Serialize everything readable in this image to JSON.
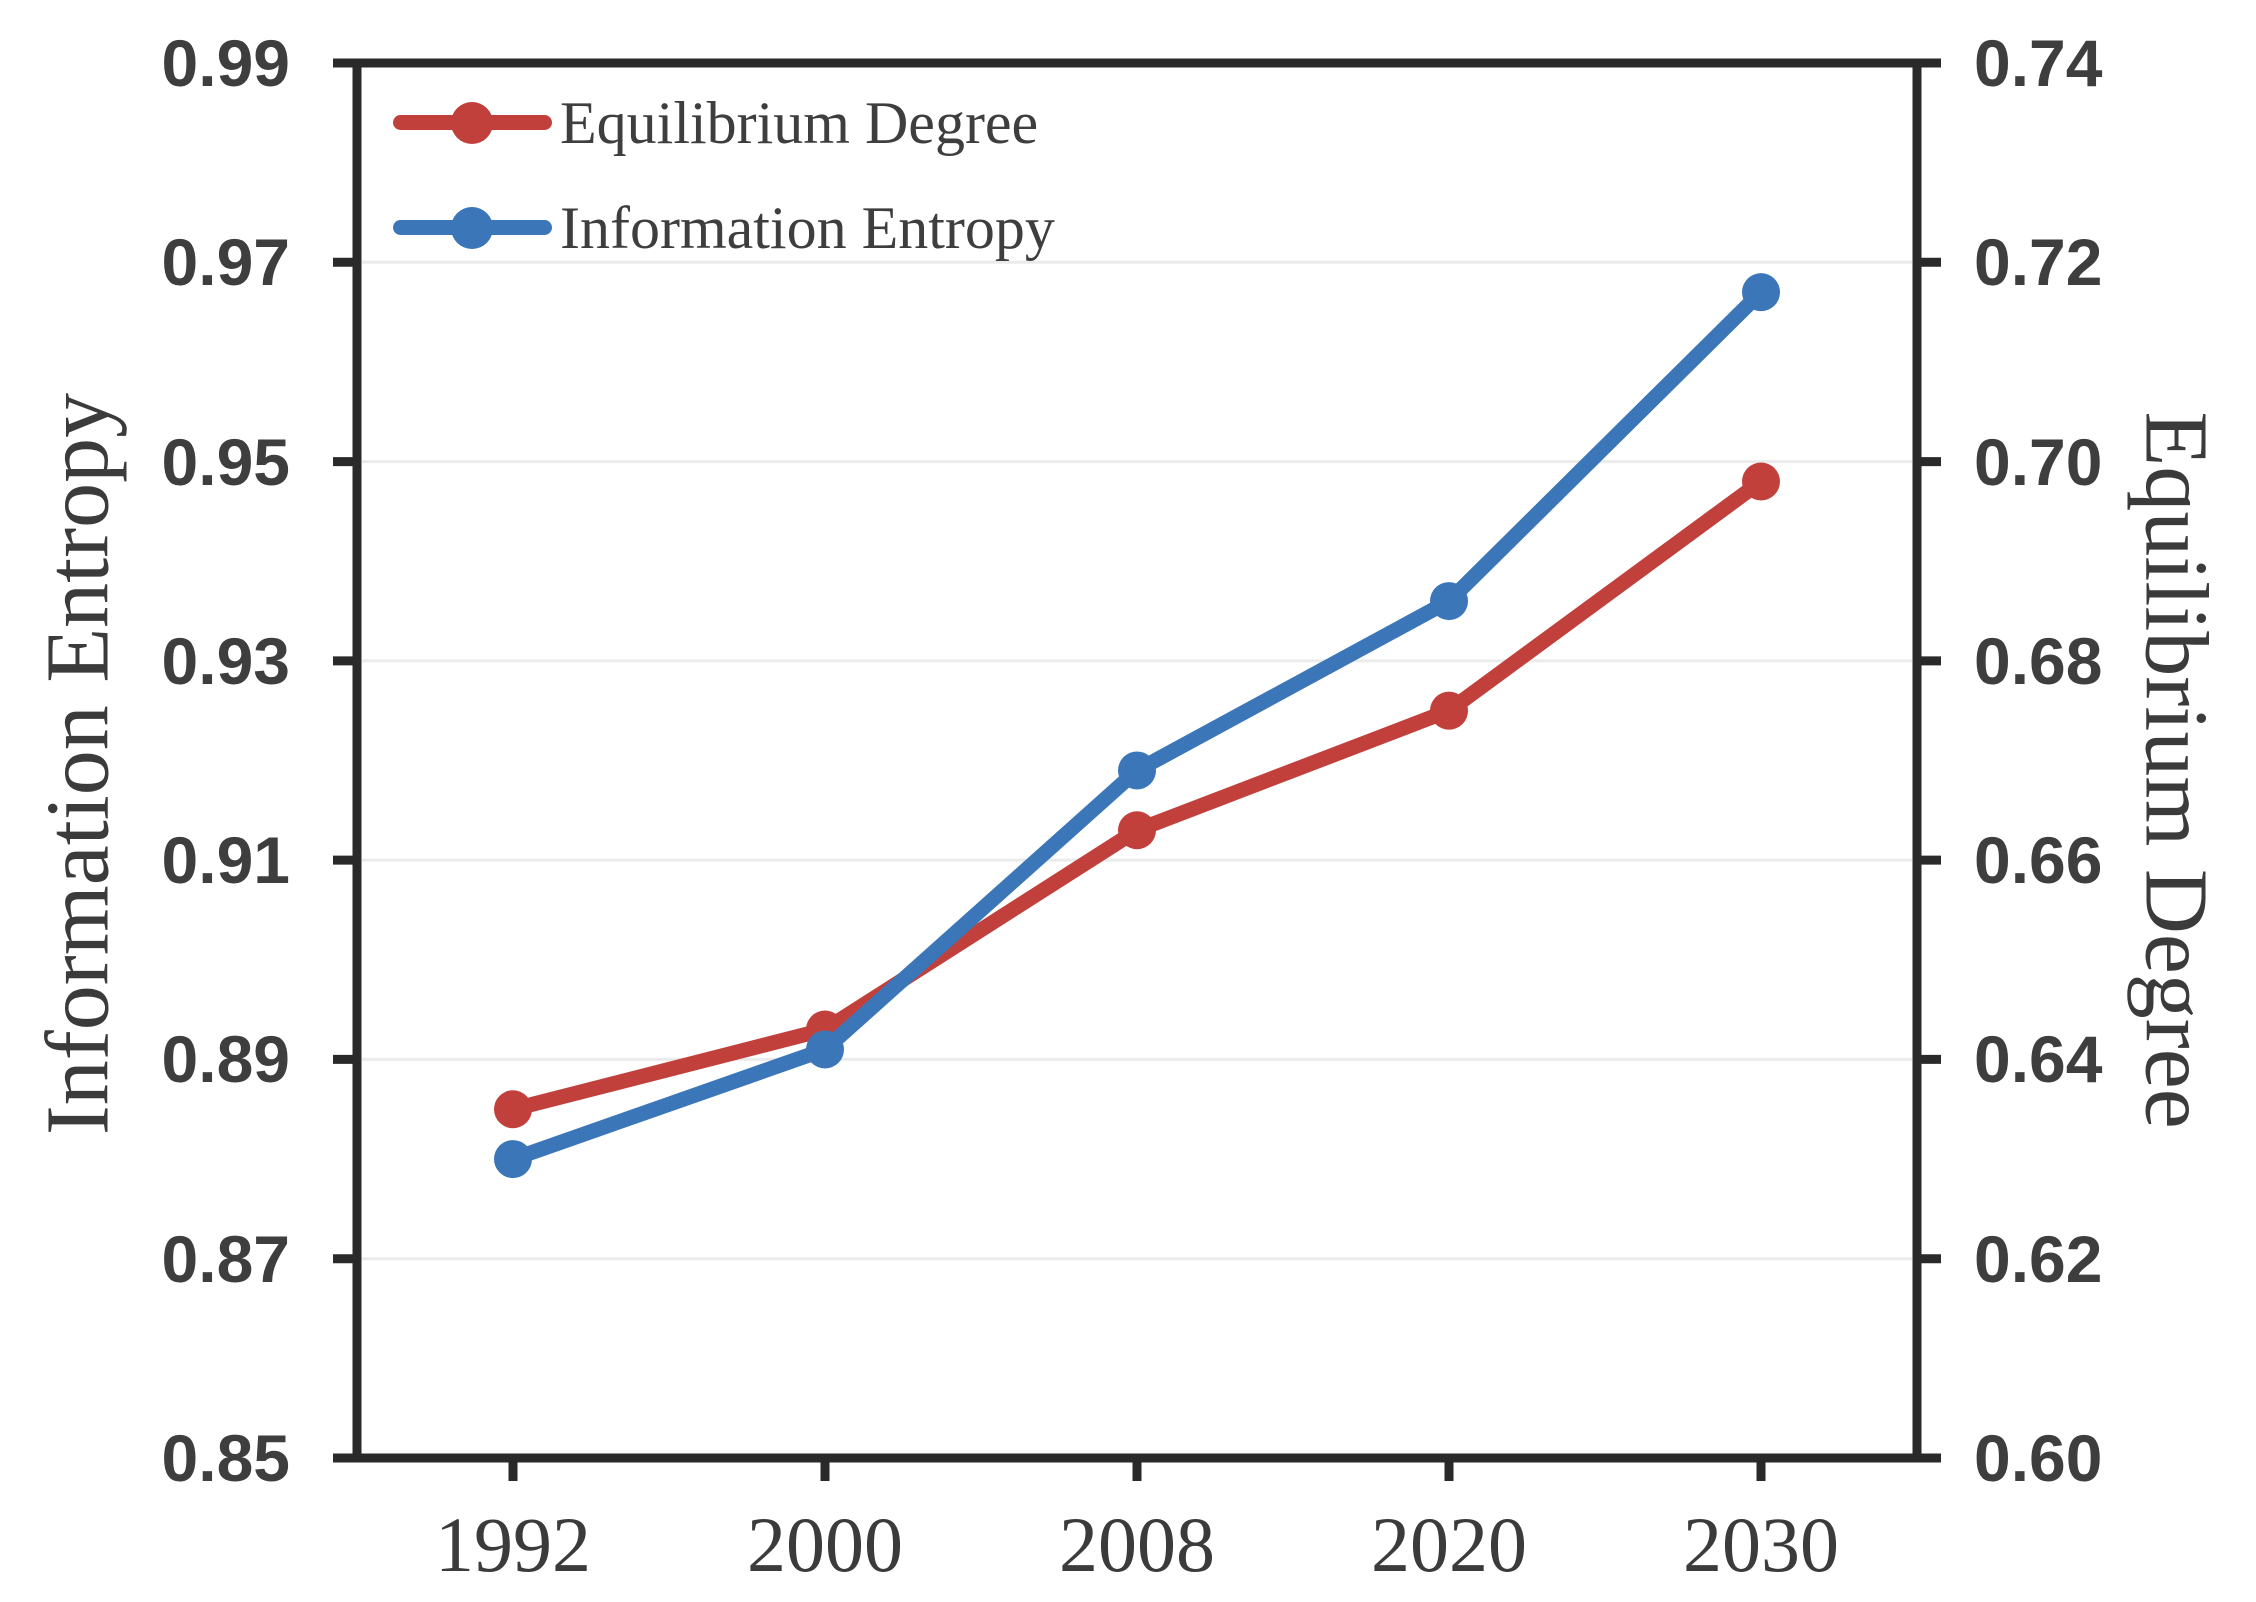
{
  "chart_data": {
    "type": "line",
    "title": "",
    "categories": [
      "1992",
      "2000",
      "2008",
      "2020",
      "2030"
    ],
    "series": [
      {
        "name": "Equilibrium Degree",
        "axis": "right",
        "color": "#c2403c",
        "marker": "circle",
        "values": [
          0.635,
          0.643,
          0.663,
          0.675,
          0.698
        ]
      },
      {
        "name": "Information Entropy",
        "axis": "left",
        "color": "#3b76b8",
        "marker": "circle",
        "values": [
          0.88,
          0.891,
          0.919,
          0.936,
          0.967
        ]
      }
    ],
    "axes": {
      "left": {
        "title": "Information Entropy",
        "min": 0.85,
        "max": 0.99,
        "tick_step": 0.02,
        "tick_labels": [
          "0.99",
          "0.97",
          "0.95",
          "0.93",
          "0.91",
          "0.89",
          "0.87",
          "0.85"
        ]
      },
      "right": {
        "title": "Equilibrium Degree",
        "min": 0.6,
        "max": 0.74,
        "tick_step": 0.02,
        "tick_labels": [
          "0.74",
          "0.72",
          "0.70",
          "0.68",
          "0.66",
          "0.64",
          "0.62",
          "0.60"
        ]
      },
      "x": {
        "tick_labels": [
          "1992",
          "2000",
          "2008",
          "2020",
          "2030"
        ]
      }
    },
    "legend": {
      "position": "top-left-inside",
      "items": [
        {
          "label": "Equilibrium Degree",
          "color": "#c2403c"
        },
        {
          "label": "Information Entropy",
          "color": "#3b76b8"
        }
      ]
    },
    "grid": {
      "horizontal": true,
      "color": "#ebebeb"
    }
  },
  "colors": {
    "background": "#ffffff",
    "frame": "#2a2a2a",
    "text": "#3e3e3e"
  }
}
